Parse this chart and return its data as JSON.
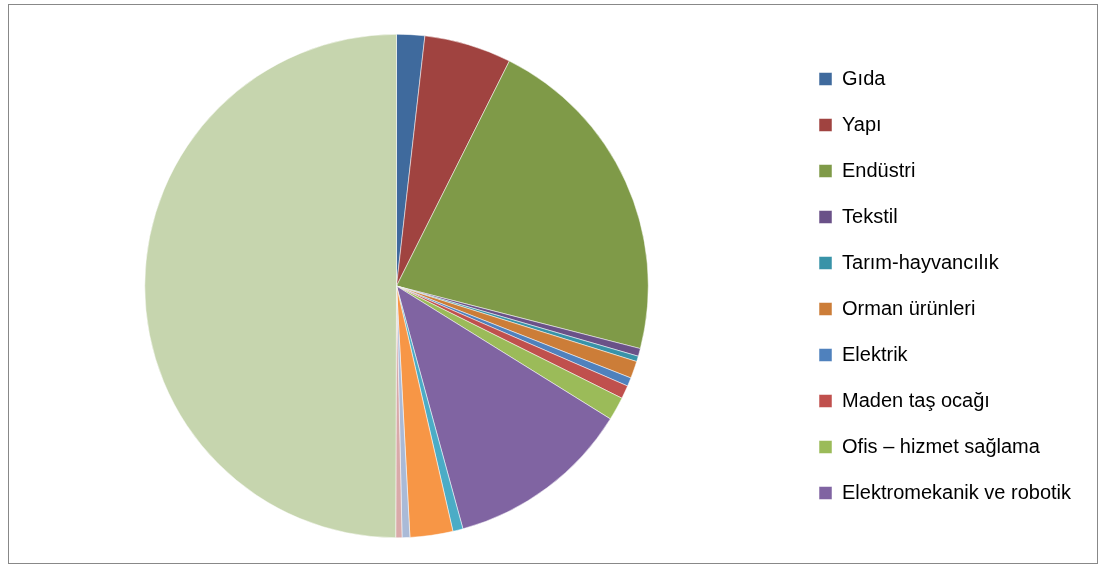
{
  "chart_data": {
    "type": "pie",
    "legend": "right",
    "categories": [
      "Gıda",
      "Yapı",
      "Endüstri",
      "Tekstil",
      "Tarım-hayvancılık",
      "Orman ürünleri",
      "Elektrik",
      "Maden taş ocağı",
      "Ofis – hizmet sağlama",
      "Elektromekanik ve robotik",
      null,
      null,
      null,
      null,
      null
    ],
    "values": [
      1.8,
      5.6,
      21.6,
      0.5,
      0.35,
      1.1,
      0.55,
      0.85,
      1.5,
      11.9,
      0.65,
      2.75,
      0.5,
      0.4,
      49.95
    ],
    "colors": [
      "#3f6a9d",
      "#a04340",
      "#7f9a48",
      "#6a5188",
      "#3893a8",
      "#cc7d38",
      "#4f81bd",
      "#c0504d",
      "#9bbb59",
      "#8064a2",
      "#4bacc6",
      "#f79646",
      "#aabad7",
      "#d9aaa9",
      "#c6d5ae"
    ]
  }
}
